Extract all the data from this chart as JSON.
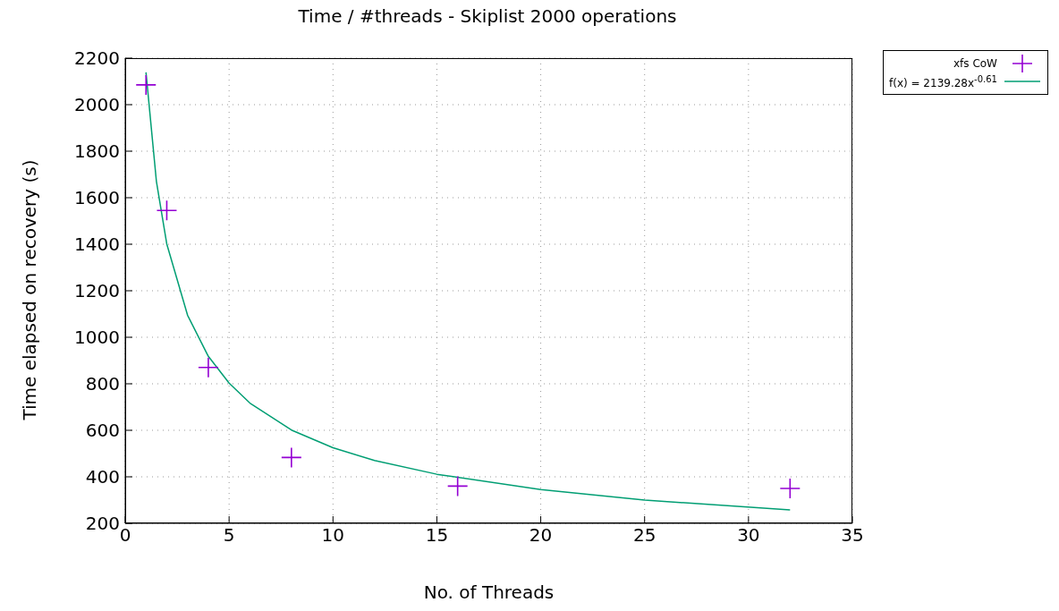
{
  "chart_data": {
    "type": "scatter",
    "title": "Time / #threads - Skiplist 2000 operations",
    "xlabel": "No. of Threads",
    "ylabel": "Time elapsed on recovery (s)",
    "xlim": [
      0,
      35
    ],
    "xticks": [
      0,
      5,
      10,
      15,
      20,
      25,
      30,
      35
    ],
    "ylim": [
      200,
      2200
    ],
    "yticks": [
      200,
      400,
      600,
      800,
      1000,
      1200,
      1400,
      1600,
      1800,
      2000,
      2200
    ],
    "grid": true,
    "legend": "top right",
    "series": [
      {
        "name": "xfs CoW",
        "type": "scatter",
        "marker": "cross",
        "color": "#9400d3",
        "x": [
          1,
          2,
          4,
          8,
          16,
          32
        ],
        "values": [
          2085,
          1545,
          870,
          483,
          360,
          350
        ]
      },
      {
        "name": "f(x) = 2139.28x$^{-0.61}$",
        "type": "line",
        "marker": "none",
        "line_style": "solid",
        "color": "#009e73",
        "x": [
          1,
          1.5,
          2,
          3,
          4,
          5,
          6,
          8,
          10,
          12,
          15,
          20,
          25,
          32
        ],
        "values": [
          2139,
          1671,
          1401,
          1095,
          918,
          803,
          717,
          601,
          525,
          470,
          411,
          345,
          300,
          258
        ]
      }
    ]
  }
}
